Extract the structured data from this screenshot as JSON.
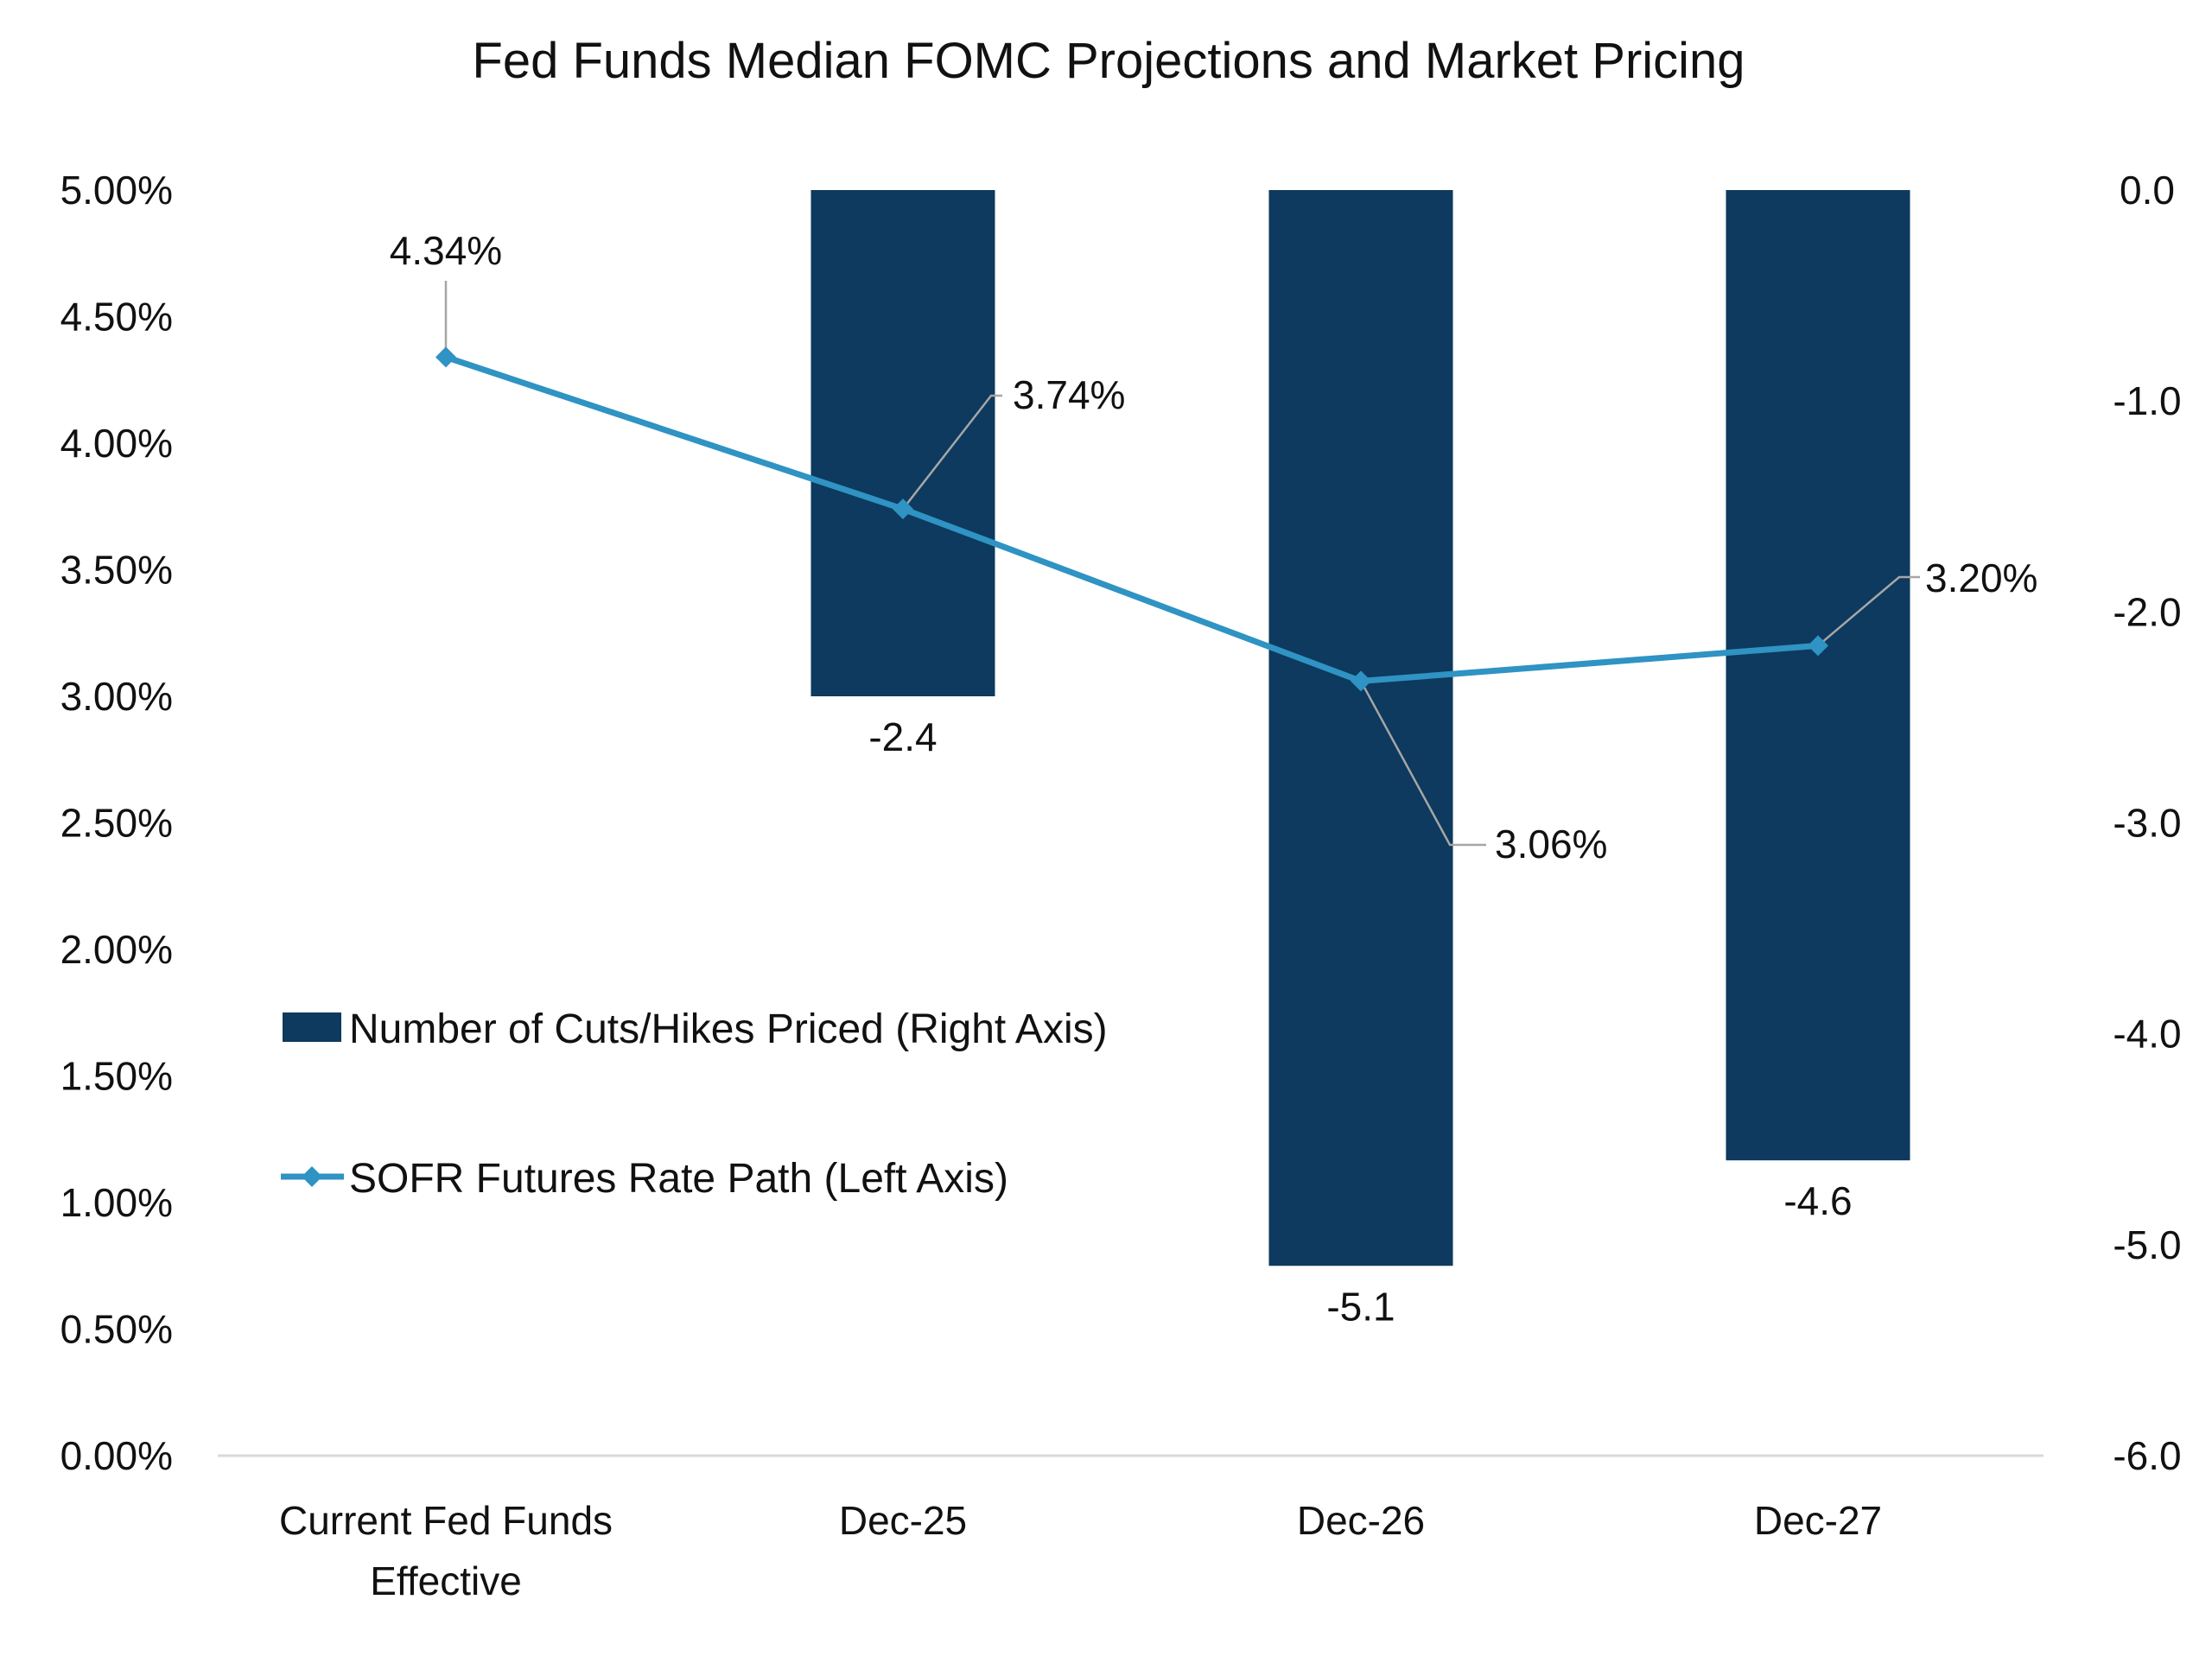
{
  "colors": {
    "bar": "#0d3a5e",
    "line": "#2f93c3",
    "axis": "#d9d9d9",
    "leader": "#a6a6a6",
    "text": "#111111"
  },
  "chart_data": {
    "type": "bar",
    "title": "Fed Funds Median FOMC Projections and Market Pricing",
    "categories": [
      "Current Fed Funds Effective",
      "Dec-25",
      "Dec-26",
      "Dec-27"
    ],
    "category_lines": [
      [
        "Current Fed Funds",
        "Effective"
      ],
      [
        "Dec-25"
      ],
      [
        "Dec-26"
      ],
      [
        "Dec-27"
      ]
    ],
    "series": [
      {
        "name": "Number of Cuts/Hikes Priced (Right Axis)",
        "type": "bar",
        "axis": "right",
        "values": [
          null,
          -2.4,
          -5.1,
          -4.6
        ],
        "labels": [
          "",
          "-2.4",
          "-5.1",
          "-4.6"
        ]
      },
      {
        "name": "SOFR Futures Rate Path (Left Axis)",
        "type": "line",
        "axis": "left",
        "marker": "diamond",
        "values": [
          4.34,
          3.74,
          3.06,
          3.2
        ],
        "labels": [
          "4.34%",
          "3.74%",
          "3.06%",
          "3.20%"
        ]
      }
    ],
    "y_left": {
      "range": [
        0,
        5
      ],
      "ticks": [
        0,
        0.5,
        1,
        1.5,
        2,
        2.5,
        3,
        3.5,
        4,
        4.5,
        5
      ],
      "tick_labels": [
        "0.00%",
        "0.50%",
        "1.00%",
        "1.50%",
        "2.00%",
        "2.50%",
        "3.00%",
        "3.50%",
        "4.00%",
        "4.50%",
        "5.00%"
      ]
    },
    "y_right": {
      "range": [
        -6,
        0
      ],
      "ticks": [
        0,
        -1,
        -2,
        -3,
        -4,
        -5,
        -6
      ],
      "tick_labels": [
        "0.0",
        "-1.0",
        "-2.0",
        "-3.0",
        "-4.0",
        "-5.0",
        "-6.0"
      ]
    },
    "grid": false,
    "legend": {
      "position": "center-left",
      "items": [
        "Number of Cuts/Hikes Priced (Right Axis)",
        "SOFR Futures Rate Path (Left Axis)"
      ]
    }
  }
}
